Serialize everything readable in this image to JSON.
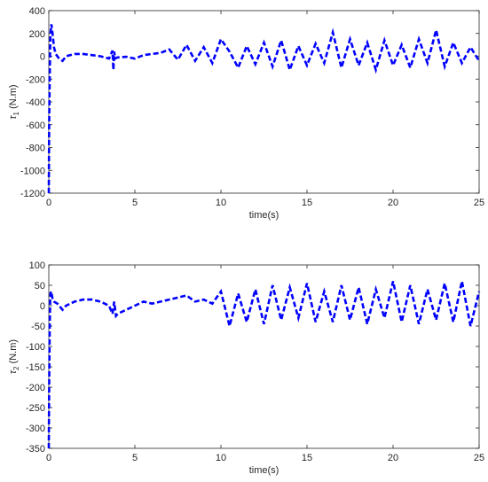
{
  "chart_data": [
    {
      "type": "line",
      "xlabel": "time(s)",
      "ylabel_symbol": "τ",
      "ylabel_sub": "1",
      "ylabel_unit": " (N.m)",
      "xlim": [
        0,
        25
      ],
      "ylim": [
        -1200,
        400
      ],
      "xticks": [
        0,
        5,
        10,
        15,
        20,
        25
      ],
      "yticks": [
        400,
        200,
        0,
        -200,
        -400,
        -600,
        -800,
        -1000,
        -1200
      ],
      "line_style": "dashed",
      "color": "#0000ff",
      "series": [
        {
          "x": [
            0.0,
            0.02,
            0.05,
            0.08,
            0.1,
            0.15,
            0.2,
            0.25,
            0.3,
            0.4,
            0.6,
            0.8,
            1.0,
            1.5,
            2.0,
            2.5,
            3.0,
            3.5,
            3.7,
            3.75,
            3.8,
            3.85,
            4.0,
            4.5,
            5.0,
            5.5,
            6.0,
            6.5,
            7.0,
            7.5,
            8.0,
            8.5,
            9.0,
            9.5,
            10.0,
            10.5,
            11.0,
            11.5,
            12.0,
            12.5,
            13.0,
            13.5,
            14.0,
            14.5,
            15.0,
            15.5,
            16.0,
            16.5,
            17.0,
            17.5,
            18.0,
            18.5,
            19.0,
            19.5,
            20.0,
            20.5,
            21.0,
            21.5,
            22.0,
            22.5,
            23.0,
            23.5,
            24.0,
            24.5,
            25.0
          ],
          "y": [
            -1200,
            -600,
            -200,
            100,
            200,
            280,
            220,
            150,
            80,
            20,
            -20,
            -40,
            0,
            20,
            20,
            10,
            0,
            -20,
            50,
            -120,
            40,
            -20,
            -10,
            -5,
            -20,
            10,
            20,
            30,
            60,
            -30,
            100,
            -40,
            80,
            -60,
            150,
            40,
            -100,
            90,
            -70,
            120,
            -90,
            140,
            -120,
            90,
            -80,
            110,
            -60,
            210,
            -100,
            150,
            -80,
            120,
            -120,
            140,
            -80,
            100,
            -100,
            150,
            -60,
            230,
            -90,
            120,
            -60,
            80,
            -40
          ]
        }
      ]
    },
    {
      "type": "line",
      "xlabel": "time(s)",
      "ylabel_symbol": "τ",
      "ylabel_sub": "2",
      "ylabel_unit": " (N.m)",
      "xlim": [
        0,
        25
      ],
      "ylim": [
        -350,
        100
      ],
      "xticks": [
        0,
        5,
        10,
        15,
        20,
        25
      ],
      "yticks": [
        100,
        50,
        0,
        -50,
        -100,
        -150,
        -200,
        -250,
        -300,
        -350
      ],
      "line_style": "dashed",
      "color": "#0000ff",
      "series": [
        {
          "x": [
            0.0,
            0.02,
            0.05,
            0.08,
            0.1,
            0.15,
            0.2,
            0.3,
            0.5,
            0.8,
            1.0,
            1.5,
            2.0,
            2.5,
            3.0,
            3.5,
            3.7,
            3.8,
            3.9,
            4.0,
            4.5,
            5.0,
            5.5,
            6.0,
            6.5,
            7.0,
            7.5,
            8.0,
            8.5,
            9.0,
            9.5,
            10.0,
            10.5,
            11.0,
            11.5,
            12.0,
            12.5,
            13.0,
            13.5,
            14.0,
            14.5,
            15.0,
            15.5,
            16.0,
            16.5,
            17.0,
            17.5,
            18.0,
            18.5,
            19.0,
            19.5,
            20.0,
            20.5,
            21.0,
            21.5,
            22.0,
            22.5,
            23.0,
            23.5,
            24.0,
            24.5,
            25.0
          ],
          "y": [
            -350,
            -200,
            -60,
            20,
            30,
            35,
            20,
            10,
            5,
            -10,
            0,
            10,
            15,
            15,
            10,
            0,
            -20,
            10,
            -25,
            -20,
            -10,
            0,
            10,
            5,
            10,
            15,
            20,
            25,
            10,
            15,
            5,
            35,
            -50,
            30,
            -40,
            40,
            -45,
            50,
            -35,
            45,
            -30,
            55,
            -40,
            35,
            -40,
            50,
            -35,
            45,
            -45,
            40,
            -30,
            60,
            -40,
            50,
            -45,
            40,
            -35,
            55,
            -40,
            60,
            -50,
            35
          ]
        }
      ]
    }
  ]
}
